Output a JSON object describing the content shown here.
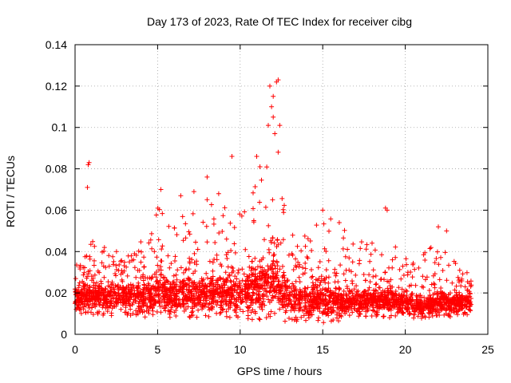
{
  "chart_data": {
    "type": "scatter",
    "title": "Day 173 of 2023, Rate Of TEC Index for receiver cibg",
    "xlabel": "GPS time / hours",
    "ylabel": "ROTI / TECUs",
    "xlim": [
      0,
      25
    ],
    "ylim": [
      0,
      0.14
    ],
    "xticks": [
      0,
      5,
      10,
      15,
      20,
      25
    ],
    "yticks": [
      0,
      0.02,
      0.04,
      0.06,
      0.08,
      0.1,
      0.12,
      0.14
    ],
    "xtick_labels": [
      "0",
      "5",
      "10",
      "15",
      "20",
      "25"
    ],
    "ytick_labels": [
      "0",
      "0.02",
      "0.04",
      "0.06",
      "0.08",
      "0.1",
      "0.12",
      "0.14"
    ],
    "grid": true,
    "marker": "+",
    "marker_color": "#ff0000",
    "series": [
      {
        "name": "ROTI",
        "envelope_description": "dense band of thousands of points between 0 and 24 h",
        "band_profile": [
          {
            "t": 0.0,
            "low": 0.01,
            "high": 0.03,
            "peak": 0.035
          },
          {
            "t": 1.0,
            "low": 0.009,
            "high": 0.036,
            "peak": 0.045
          },
          {
            "t": 2.0,
            "low": 0.009,
            "high": 0.034,
            "peak": 0.045
          },
          {
            "t": 3.0,
            "low": 0.009,
            "high": 0.034,
            "peak": 0.044
          },
          {
            "t": 4.0,
            "low": 0.008,
            "high": 0.035,
            "peak": 0.047
          },
          {
            "t": 5.0,
            "low": 0.008,
            "high": 0.04,
            "peak": 0.062
          },
          {
            "t": 6.0,
            "low": 0.008,
            "high": 0.038,
            "peak": 0.055
          },
          {
            "t": 7.0,
            "low": 0.008,
            "high": 0.037,
            "peak": 0.06
          },
          {
            "t": 8.0,
            "low": 0.008,
            "high": 0.04,
            "peak": 0.066
          },
          {
            "t": 9.0,
            "low": 0.008,
            "high": 0.038,
            "peak": 0.065
          },
          {
            "t": 10.0,
            "low": 0.007,
            "high": 0.04,
            "peak": 0.06
          },
          {
            "t": 11.0,
            "low": 0.007,
            "high": 0.05,
            "peak": 0.075
          },
          {
            "t": 12.0,
            "low": 0.006,
            "high": 0.055,
            "peak": 0.09
          },
          {
            "t": 13.0,
            "low": 0.006,
            "high": 0.04,
            "peak": 0.052
          },
          {
            "t": 14.0,
            "low": 0.005,
            "high": 0.035,
            "peak": 0.048
          },
          {
            "t": 15.0,
            "low": 0.005,
            "high": 0.036,
            "peak": 0.058
          },
          {
            "t": 16.0,
            "low": 0.006,
            "high": 0.032,
            "peak": 0.054
          },
          {
            "t": 17.0,
            "low": 0.007,
            "high": 0.03,
            "peak": 0.045
          },
          {
            "t": 18.0,
            "low": 0.008,
            "high": 0.03,
            "peak": 0.045
          },
          {
            "t": 19.0,
            "low": 0.008,
            "high": 0.03,
            "peak": 0.044
          },
          {
            "t": 20.0,
            "low": 0.008,
            "high": 0.027,
            "peak": 0.04
          },
          {
            "t": 21.0,
            "low": 0.007,
            "high": 0.026,
            "peak": 0.038
          },
          {
            "t": 22.0,
            "low": 0.007,
            "high": 0.03,
            "peak": 0.05
          },
          {
            "t": 23.0,
            "low": 0.008,
            "high": 0.028,
            "peak": 0.036
          },
          {
            "t": 24.0,
            "low": 0.01,
            "high": 0.025,
            "peak": 0.028
          }
        ],
        "notable_points": [
          {
            "x": 0.8,
            "y": 0.082
          },
          {
            "x": 0.85,
            "y": 0.083
          },
          {
            "x": 0.75,
            "y": 0.071
          },
          {
            "x": 11.0,
            "y": 0.086
          },
          {
            "x": 11.2,
            "y": 0.081
          },
          {
            "x": 11.7,
            "y": 0.101
          },
          {
            "x": 11.9,
            "y": 0.11
          },
          {
            "x": 12.0,
            "y": 0.115
          },
          {
            "x": 11.8,
            "y": 0.12
          },
          {
            "x": 12.2,
            "y": 0.122
          },
          {
            "x": 12.3,
            "y": 0.123
          },
          {
            "x": 12.1,
            "y": 0.097
          },
          {
            "x": 12.4,
            "y": 0.101
          },
          {
            "x": 12.0,
            "y": 0.105
          },
          {
            "x": 12.3,
            "y": 0.088
          },
          {
            "x": 9.5,
            "y": 0.086
          },
          {
            "x": 8.0,
            "y": 0.076
          },
          {
            "x": 6.4,
            "y": 0.067
          },
          {
            "x": 5.2,
            "y": 0.07
          },
          {
            "x": 7.2,
            "y": 0.069
          },
          {
            "x": 8.7,
            "y": 0.068
          },
          {
            "x": 18.8,
            "y": 0.061
          },
          {
            "x": 18.9,
            "y": 0.06
          },
          {
            "x": 15.0,
            "y": 0.06
          },
          {
            "x": 16.0,
            "y": 0.054
          },
          {
            "x": 22.0,
            "y": 0.052
          },
          {
            "x": 22.5,
            "y": 0.05
          }
        ]
      }
    ]
  }
}
